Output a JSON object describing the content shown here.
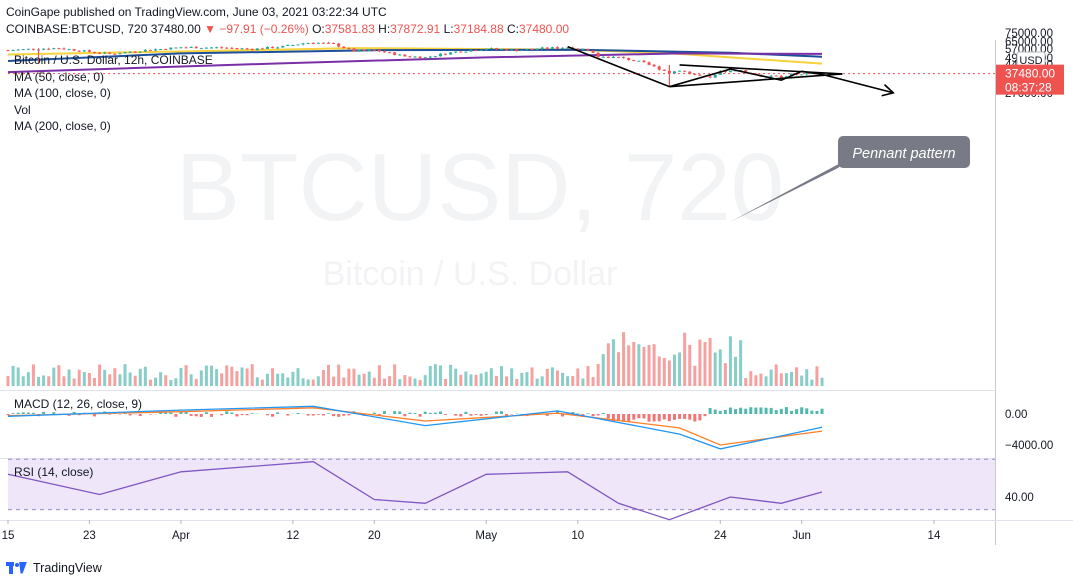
{
  "header": {
    "publisher": "CoinGape published on TradingView.com, June 03, 2021 03:22:34 UTC",
    "symbol": "COINBASE:BTCUSD, 720",
    "price": "37480.00",
    "change": "▼  −97.91 (−0.26%)",
    "o_label": "O:",
    "o_value": "37581.83",
    "h_label": "H:",
    "h_value": "37872.91",
    "l_label": "L:",
    "l_value": "37184.88",
    "c_label": "C:",
    "c_value": "37480.00"
  },
  "legend": {
    "title": "Bitcoin / U.S. Dollar, 12h, COINBASE",
    "ma50": "MA (50, close, 0)",
    "ma100": "MA (100, close, 0)",
    "vol": "Vol",
    "ma200": "MA (200, close, 0)"
  },
  "watermark": {
    "big": "BTCUSD, 720",
    "sub": "Bitcoin / U.S. Dollar"
  },
  "annotation": {
    "label": "Pennant pattern"
  },
  "colors": {
    "up": "#26a69a",
    "down": "#ef5350",
    "ma50": "#f7d23b",
    "ma100": "#1e4f9a",
    "ma200": "#7b2fa6",
    "macd": "#2196f3",
    "signal": "#ff7f2a",
    "rsi": "#7e57c2",
    "price_tag": "#ef5350"
  },
  "price_axis": {
    "unit_badge": "USD",
    "labels": [
      "75000.00",
      "65000.00",
      "57000.00",
      "49000.00",
      "44000.00",
      "34000.00",
      "30000.00",
      "27000.00"
    ],
    "current_price": "37480.00",
    "countdown": "08:37:28"
  },
  "macd_panel": {
    "label": "MACD (12, 26, close, 9)",
    "axis_labels": [
      "0.00",
      "−4000.00"
    ]
  },
  "rsi_panel": {
    "label": "RSI (14, close)",
    "axis_label": "40.00"
  },
  "time_axis": {
    "labels": [
      "15",
      "23",
      "Apr",
      "12",
      "20",
      "May",
      "10",
      "24",
      "Jun",
      "14"
    ]
  },
  "footer": {
    "brand": "TradingView"
  },
  "chart_data": {
    "type": "candlestick",
    "title": "Bitcoin / U.S. Dollar, 12h, COINBASE",
    "x_range": [
      "2021-03-15",
      "2021-06-20"
    ],
    "y_scale": "log",
    "y_ticks": [
      27000,
      30000,
      34000,
      44000,
      49000,
      57000,
      65000,
      75000
    ],
    "current_price": 37480.0,
    "close_path": [
      {
        "date": "2021-03-15",
        "close": 56000
      },
      {
        "date": "2021-03-17",
        "close": 57000
      },
      {
        "date": "2021-03-20",
        "close": 58000
      },
      {
        "date": "2021-03-23",
        "close": 54500
      },
      {
        "date": "2021-03-25",
        "close": 52500
      },
      {
        "date": "2021-03-28",
        "close": 55500
      },
      {
        "date": "2021-04-01",
        "close": 58800
      },
      {
        "date": "2021-04-05",
        "close": 58500
      },
      {
        "date": "2021-04-08",
        "close": 57000
      },
      {
        "date": "2021-04-11",
        "close": 59500
      },
      {
        "date": "2021-04-13",
        "close": 63000
      },
      {
        "date": "2021-04-14",
        "close": 64000
      },
      {
        "date": "2021-04-16",
        "close": 62000
      },
      {
        "date": "2021-04-18",
        "close": 55000
      },
      {
        "date": "2021-04-20",
        "close": 56000
      },
      {
        "date": "2021-04-23",
        "close": 50500
      },
      {
        "date": "2021-04-25",
        "close": 49500
      },
      {
        "date": "2021-04-28",
        "close": 54500
      },
      {
        "date": "2021-05-01",
        "close": 57500
      },
      {
        "date": "2021-05-04",
        "close": 56000
      },
      {
        "date": "2021-05-07",
        "close": 58000
      },
      {
        "date": "2021-05-09",
        "close": 58800
      },
      {
        "date": "2021-05-11",
        "close": 56500
      },
      {
        "date": "2021-05-12",
        "close": 50000
      },
      {
        "date": "2021-05-14",
        "close": 49500
      },
      {
        "date": "2021-05-16",
        "close": 46000
      },
      {
        "date": "2021-05-17",
        "close": 43500
      },
      {
        "date": "2021-05-19",
        "close": 38000
      },
      {
        "date": "2021-05-20",
        "close": 40000
      },
      {
        "date": "2021-05-21",
        "close": 37500
      },
      {
        "date": "2021-05-23",
        "close": 34500
      },
      {
        "date": "2021-05-24",
        "close": 38500
      },
      {
        "date": "2021-05-25",
        "close": 39000
      },
      {
        "date": "2021-05-26",
        "close": 39500
      },
      {
        "date": "2021-05-28",
        "close": 36000
      },
      {
        "date": "2021-05-30",
        "close": 35500
      },
      {
        "date": "2021-05-31",
        "close": 37000
      },
      {
        "date": "2021-06-01",
        "close": 36800
      },
      {
        "date": "2021-06-02",
        "close": 37500
      },
      {
        "date": "2021-06-03",
        "close": 37480
      }
    ],
    "moving_averages": [
      {
        "name": "MA (50, close, 0)",
        "points": [
          {
            "date": "2021-03-15",
            "v": 52000
          },
          {
            "date": "2021-04-05",
            "v": 55500
          },
          {
            "date": "2021-04-18",
            "v": 58000
          },
          {
            "date": "2021-05-10",
            "v": 56500
          },
          {
            "date": "2021-05-20",
            "v": 52500
          },
          {
            "date": "2021-06-03",
            "v": 44500
          }
        ]
      },
      {
        "name": "MA (100, close, 0)",
        "points": [
          {
            "date": "2021-03-15",
            "v": 46500
          },
          {
            "date": "2021-04-01",
            "v": 53000
          },
          {
            "date": "2021-04-20",
            "v": 56000
          },
          {
            "date": "2021-05-10",
            "v": 56500
          },
          {
            "date": "2021-05-25",
            "v": 53500
          },
          {
            "date": "2021-06-03",
            "v": 50000
          }
        ]
      },
      {
        "name": "MA (200, close, 0)",
        "points": [
          {
            "date": "2021-03-15",
            "v": 38500
          },
          {
            "date": "2021-04-10",
            "v": 44500
          },
          {
            "date": "2021-05-01",
            "v": 49500
          },
          {
            "date": "2021-05-20",
            "v": 53000
          },
          {
            "date": "2021-06-03",
            "v": 52500
          }
        ]
      }
    ],
    "drawings": {
      "trend_lines": [
        {
          "from": {
            "date": "2021-05-09",
            "price": 59500
          },
          "to": {
            "date": "2021-05-19",
            "price": 30000
          }
        },
        {
          "from": {
            "date": "2021-05-20",
            "price": 43500
          },
          "to": {
            "date": "2021-06-05",
            "price": 37300
          }
        },
        {
          "from": {
            "date": "2021-05-19",
            "price": 30000
          },
          "to": {
            "date": "2021-06-05",
            "price": 37300
          }
        },
        {
          "from": {
            "date": "2021-06-03",
            "price": 37000
          },
          "to": {
            "date": "2021-06-10",
            "price": 27000
          },
          "arrow": true
        }
      ],
      "zigzag": [
        {
          "date": "2021-05-19",
          "price": 30000
        },
        {
          "date": "2021-05-25",
          "price": 40500
        },
        {
          "date": "2021-05-30",
          "price": 33500
        },
        {
          "date": "2021-06-01",
          "price": 39000
        },
        {
          "date": "2021-06-03",
          "price": 37000
        }
      ]
    },
    "macd": {
      "name": "MACD (12, 26, close, 9)",
      "y_ticks": [
        0,
        -4000
      ],
      "macd_line": [
        {
          "date": "2021-03-15",
          "v": -300
        },
        {
          "date": "2021-04-01",
          "v": 500
        },
        {
          "date": "2021-04-14",
          "v": 1000
        },
        {
          "date": "2021-04-25",
          "v": -1500
        },
        {
          "date": "2021-05-08",
          "v": 400
        },
        {
          "date": "2021-05-20",
          "v": -2600
        },
        {
          "date": "2021-05-24",
          "v": -4500
        },
        {
          "date": "2021-06-03",
          "v": -1700
        }
      ],
      "signal_line": [
        {
          "date": "2021-03-15",
          "v": -200
        },
        {
          "date": "2021-04-01",
          "v": 300
        },
        {
          "date": "2021-04-14",
          "v": 800
        },
        {
          "date": "2021-04-25",
          "v": -900
        },
        {
          "date": "2021-05-08",
          "v": 100
        },
        {
          "date": "2021-05-20",
          "v": -1800
        },
        {
          "date": "2021-05-24",
          "v": -4000
        },
        {
          "date": "2021-06-03",
          "v": -2200
        }
      ]
    },
    "rsi": {
      "name": "RSI (14, close)",
      "y_ticks": [
        40
      ],
      "band": [
        30,
        70
      ],
      "points": [
        {
          "date": "2021-03-15",
          "v": 58
        },
        {
          "date": "2021-03-24",
          "v": 42
        },
        {
          "date": "2021-04-01",
          "v": 60
        },
        {
          "date": "2021-04-14",
          "v": 68
        },
        {
          "date": "2021-04-20",
          "v": 38
        },
        {
          "date": "2021-04-25",
          "v": 35
        },
        {
          "date": "2021-05-01",
          "v": 58
        },
        {
          "date": "2021-05-09",
          "v": 60
        },
        {
          "date": "2021-05-14",
          "v": 35
        },
        {
          "date": "2021-05-19",
          "v": 22
        },
        {
          "date": "2021-05-25",
          "v": 40
        },
        {
          "date": "2021-05-30",
          "v": 35
        },
        {
          "date": "2021-06-03",
          "v": 44
        }
      ]
    }
  }
}
